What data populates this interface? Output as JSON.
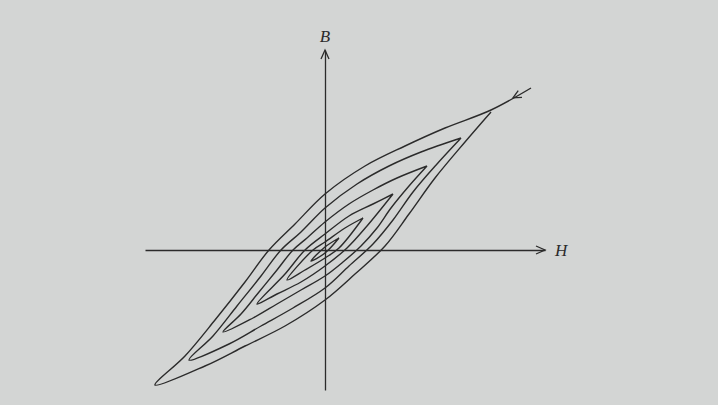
{
  "chart_data": {
    "type": "line",
    "x_label": "H",
    "y_label": "B",
    "xlim": [
      -9,
      11
    ],
    "ylim": [
      -7,
      10
    ],
    "tick_labels": false,
    "color": "#2b2b2b",
    "series": [
      {
        "x": [
          10.3,
          8.3,
          6,
          4,
          2,
          0,
          -1.5,
          -2.8,
          -4,
          -5.5,
          -7,
          -8.5,
          -6,
          -4,
          -2,
          0,
          1.5,
          3,
          4.2,
          5.5,
          7,
          8.3
        ],
        "values": [
          8.1,
          7.0,
          6.1,
          5.2,
          4.2,
          2.8,
          1.3,
          0,
          -1.6,
          -3.5,
          -5.3,
          -6.75,
          -5.8,
          -4.8,
          -3.8,
          -2.5,
          -1.2,
          0.2,
          1.8,
          3.6,
          5.4,
          6.9
        ]
      },
      {
        "x": [
          6.8,
          4.8,
          3.2,
          1.6,
          0,
          -1.2,
          -2.2,
          -3.2,
          -4.4,
          -5.6,
          -6.8,
          -4.8,
          -3.2,
          -1.6,
          0,
          1.2,
          2.4,
          3.4,
          4.4,
          5.6,
          6.8
        ],
        "values": [
          5.6,
          4.9,
          4.2,
          3.3,
          2.1,
          0.9,
          0,
          -1.3,
          -2.8,
          -4.3,
          -5.5,
          -4.7,
          -3.8,
          -2.9,
          -1.9,
          -0.8,
          0.3,
          1.5,
          2.9,
          4.3,
          5.6
        ]
      },
      {
        "x": [
          5.1,
          3.6,
          2.4,
          1.2,
          0,
          -0.9,
          -1.6,
          -2.4,
          -3.3,
          -4.2,
          -5.1,
          -3.6,
          -2.4,
          -1.2,
          0,
          0.9,
          1.8,
          2.6,
          3.3,
          4.2,
          5.1
        ],
        "values": [
          4.2,
          3.6,
          3.0,
          2.3,
          1.4,
          0.6,
          0,
          -1.0,
          -2.1,
          -3.2,
          -4.1,
          -3.4,
          -2.7,
          -2.0,
          -1.3,
          -0.6,
          0.2,
          1.1,
          2.1,
          3.2,
          4.2
        ]
      },
      {
        "x": [
          3.4,
          2.4,
          1.2,
          0,
          -1.0,
          -2.0,
          -3.4,
          -2.4,
          -1.2,
          0,
          1.1,
          2.1,
          3.4
        ],
        "values": [
          2.8,
          2.3,
          1.7,
          0.8,
          0,
          -1.2,
          -2.7,
          -2.2,
          -1.6,
          -0.8,
          0.1,
          1.2,
          2.8
        ]
      },
      {
        "x": [
          1.9,
          1.0,
          0,
          -0.6,
          -1.9,
          -1.0,
          0,
          0.7,
          1.9
        ],
        "values": [
          1.6,
          1.1,
          0.4,
          0,
          -1.5,
          -1.0,
          -0.4,
          0.1,
          1.6
        ]
      },
      {
        "x": [
          0.7,
          0,
          -0.7,
          0,
          0.7
        ],
        "values": [
          0.6,
          0.15,
          -0.55,
          -0.15,
          0.6
        ]
      }
    ]
  }
}
